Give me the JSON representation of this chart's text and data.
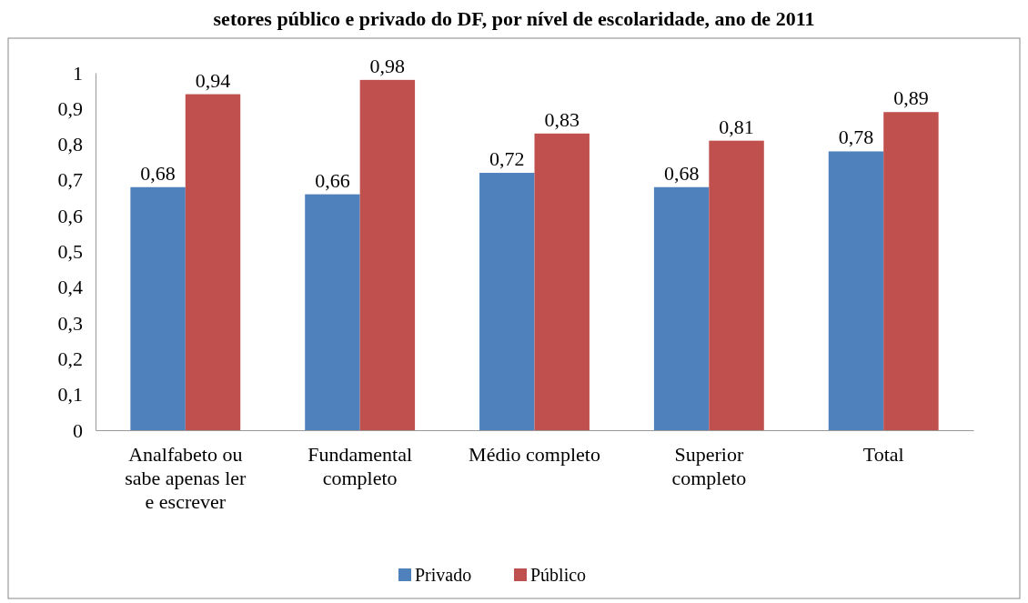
{
  "chart_data": {
    "type": "bar",
    "title": "setores público e privado do DF, por nível de escolaridade, ano de 2011",
    "categories": [
      "Analfabeto ou sabe apenas ler e escrever",
      "Fundamental completo",
      "Médio completo",
      "Superior completo",
      "Total"
    ],
    "series": [
      {
        "name": "Privado",
        "color": "#4f81bd",
        "values": [
          0.68,
          0.66,
          0.72,
          0.68,
          0.78
        ],
        "value_labels": [
          "0,68",
          "0,66",
          "0,72",
          "0,68",
          "0,78"
        ]
      },
      {
        "name": "Público",
        "color": "#c0504d",
        "values": [
          0.94,
          0.98,
          0.83,
          0.81,
          0.89
        ],
        "value_labels": [
          "0,94",
          "0,98",
          "0,83",
          "0,81",
          "0,89"
        ]
      }
    ],
    "ylim": [
      0,
      1
    ],
    "yticks": [
      {
        "value": 0,
        "label": "0"
      },
      {
        "value": 0.1,
        "label": "0,1"
      },
      {
        "value": 0.2,
        "label": "0,2"
      },
      {
        "value": 0.3,
        "label": "0,3"
      },
      {
        "value": 0.4,
        "label": "0,4"
      },
      {
        "value": 0.5,
        "label": "0,5"
      },
      {
        "value": 0.6,
        "label": "0,6"
      },
      {
        "value": 0.7,
        "label": "0,7"
      },
      {
        "value": 0.8,
        "label": "0,8"
      },
      {
        "value": 0.9,
        "label": "0,9"
      },
      {
        "value": 1,
        "label": "1"
      }
    ],
    "grid": false,
    "legend": "bottom"
  }
}
